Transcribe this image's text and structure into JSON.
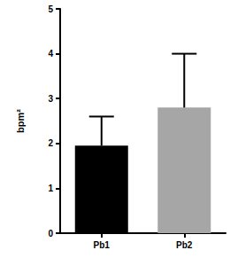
{
  "chart_data": {
    "type": "bar",
    "y_label": "bpm²",
    "categories": [
      "Pb1",
      "Pb2"
    ],
    "values": [
      1.95,
      2.8
    ],
    "errors": [
      0.65,
      1.2
    ],
    "colors": [
      "#000000",
      "#a6a6a6"
    ],
    "ylim": [
      0,
      5
    ],
    "yticks": [
      0,
      1,
      2,
      3,
      4,
      5
    ],
    "grid": false
  }
}
